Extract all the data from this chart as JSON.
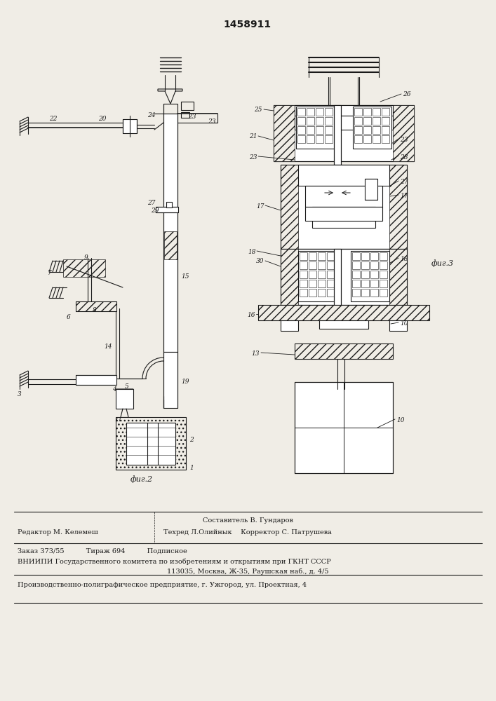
{
  "patent_number": "1458911",
  "bg_color": "#f0ede6",
  "line_color": "#1a1a1a",
  "fig_width": 7.07,
  "fig_height": 10.0,
  "footer_line1_center": "Составитель В. Гундаров",
  "footer_line1_left": "Редактор М. Келемеш",
  "footer_line2_center": "Техред Л.Олийнык    Корректор С. Патрушева",
  "footer_line3": "Заказ 373/55          Тираж 694          Подписное",
  "footer_line4": "ВНИИПИ Государственного комитета по изобретениям и открытиям при ГКНТ СССР",
  "footer_line5": "113035, Москва, Ж-35, Раушская наб., д. 4/5",
  "footer_line6": "Производственно-полиграфическое предприятие, г. Ужгород, ул. Проектная, 4",
  "fig2_label": "фиг.2",
  "fig3_label": "фиг.3"
}
